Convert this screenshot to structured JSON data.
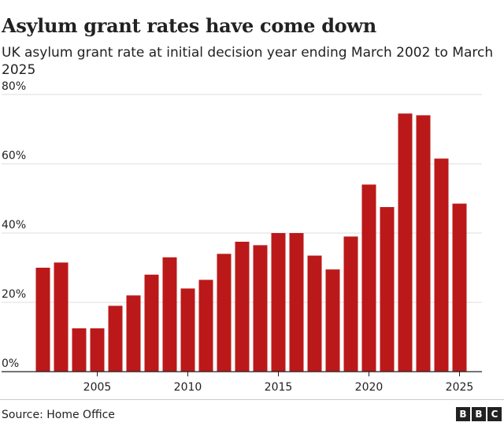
{
  "header": {
    "title": "Asylum grant rates have come down",
    "subtitle": "UK asylum grant rate at initial decision year ending March 2002 to March 2025"
  },
  "footer": {
    "source": "Source: Home Office",
    "logo_letters": [
      "B",
      "B",
      "C"
    ]
  },
  "colors": {
    "bar": "#bb1919",
    "gridline": "#dddddd",
    "axis": "#222222"
  },
  "chart_data": {
    "type": "bar",
    "title": "Asylum grant rates have come down",
    "subtitle": "UK asylum grant rate at initial decision year ending March 2002 to March 2025",
    "xlabel": "",
    "ylabel": "",
    "x": [
      2002,
      2003,
      2004,
      2005,
      2006,
      2007,
      2008,
      2009,
      2010,
      2011,
      2012,
      2013,
      2014,
      2015,
      2016,
      2017,
      2018,
      2019,
      2020,
      2021,
      2022,
      2023,
      2024,
      2025
    ],
    "values": [
      30,
      31.5,
      12.5,
      12.5,
      19,
      22,
      28,
      33,
      24,
      26.5,
      34,
      37.5,
      36.5,
      40,
      40,
      33.5,
      29.5,
      39,
      54,
      47.5,
      74.5,
      74,
      61.5,
      48.5
    ],
    "ylim": [
      0,
      80
    ],
    "yticks": [
      "0%",
      "20%",
      "40%",
      "60%",
      "80%"
    ],
    "ytick_values": [
      0,
      20,
      40,
      60,
      80
    ],
    "xticks": [
      "2005",
      "2010",
      "2015",
      "2020",
      "2025"
    ],
    "xtick_values": [
      2005,
      2010,
      2015,
      2020,
      2025
    ],
    "grid": true,
    "legend": "none"
  }
}
